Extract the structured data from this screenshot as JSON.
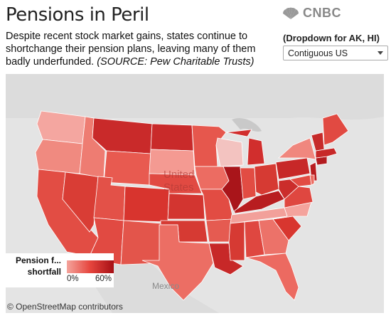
{
  "header": {
    "title": "Pensions in Peril",
    "subtitle": "Despite recent stock market gains, states continue to shortchange their pension plans, leaving many of them badly underfunded.",
    "source": "(SOURCE: Pew Charitable Trusts)"
  },
  "brand": {
    "logo_text": "CNBC",
    "logo_icon": "peacock-icon"
  },
  "filter": {
    "label": "(Dropdown for AK, HI)",
    "selected": "Contiguous US"
  },
  "map": {
    "base_labels": [
      "United",
      "States",
      "Mexico"
    ],
    "attribution": "© OpenStreetMap contributors"
  },
  "legend": {
    "title": "Pension f... shortfall",
    "min_label": "0%",
    "max_label": "60%",
    "color_low": "#f4a49c",
    "color_high": "#a50f15"
  }
}
